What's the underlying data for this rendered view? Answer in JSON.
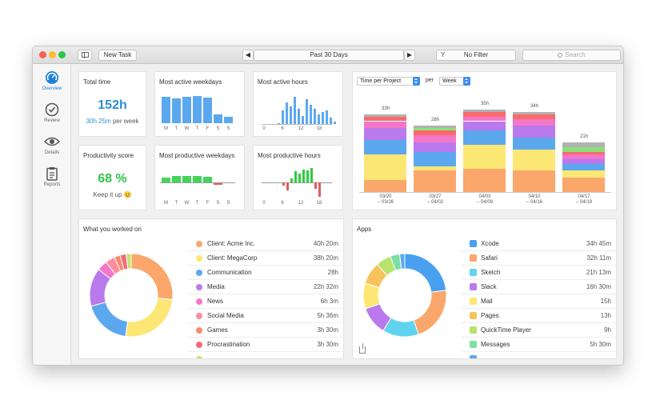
{
  "toolbar": {
    "new_task": "New Task",
    "range_label": "Past 30 Days",
    "prev": "◀",
    "next": "▶",
    "filter": "No Filter",
    "filter_icon": "Y",
    "search_placeholder": "Search"
  },
  "sidebar": {
    "items": [
      {
        "label": "Overview",
        "icon": "gauge-icon",
        "active": true
      },
      {
        "label": "Review",
        "icon": "check-icon",
        "active": false
      },
      {
        "label": "Details",
        "icon": "eye-icon",
        "active": false
      },
      {
        "label": "Reports",
        "icon": "clipboard-icon",
        "active": false
      }
    ]
  },
  "total_time": {
    "title": "Total time",
    "value": "152h",
    "per_week_value": "30h 25m",
    "per_week_suffix": "per week"
  },
  "productivity": {
    "title": "Productivity score",
    "value": "68 %",
    "message": "Keep it up 😊"
  },
  "active_weekdays": {
    "title": "Most active weekdays",
    "labels": [
      "M",
      "T",
      "W",
      "T",
      "F",
      "S",
      "S"
    ],
    "values": [
      0.88,
      0.82,
      0.88,
      0.9,
      0.84,
      0.28,
      0.22
    ]
  },
  "active_hours": {
    "title": "Most active hours",
    "ticks": [
      "0",
      "6",
      "12",
      "18"
    ],
    "values": [
      0.04,
      0.5,
      0.8,
      0.65,
      1.0,
      0.55,
      0.3,
      0.9,
      0.7,
      0.55,
      0.35,
      0.45,
      0.5,
      0.25,
      0.1
    ]
  },
  "productive_weekdays": {
    "title": "Most productive weekdays",
    "labels": [
      "M",
      "T",
      "W",
      "T",
      "F",
      "S",
      "S"
    ],
    "values": [
      0.45,
      0.55,
      0.58,
      0.6,
      0.48,
      -0.2,
      -0.05
    ]
  },
  "productive_hours": {
    "title": "Most productive hours",
    "ticks": [
      "0",
      "6",
      "12",
      "18"
    ],
    "values": [
      -0.2,
      -0.55,
      0.3,
      0.8,
      0.6,
      0.9,
      0.85,
      1.0,
      -0.45,
      -1.0
    ]
  },
  "project_chart": {
    "dimension_select": "Time per Project",
    "per_label": "per",
    "period_select": "Week",
    "chart_data": {
      "type": "bar",
      "stacked": true,
      "categories": [
        "03/20 – 03/26",
        "03/27 – 04/02",
        "04/03 – 04/09",
        "04/10 – 04/16",
        "04/17 – 04/19"
      ],
      "category_lines": [
        [
          "03/20",
          "– 03/26"
        ],
        [
          "03/27",
          "– 04/02"
        ],
        [
          "04/03",
          "– 04/09"
        ],
        [
          "04/10",
          "– 04/16"
        ],
        [
          "04/17",
          "– 04/19"
        ]
      ],
      "totals": [
        "33h",
        "28h",
        "35h",
        "34h",
        "21h"
      ],
      "total_values": [
        33,
        28,
        35,
        34,
        21
      ],
      "ylim": [
        0,
        40
      ],
      "series": [
        {
          "color": "#fba66b",
          "values": [
            5,
            9,
            10,
            9,
            6
          ]
        },
        {
          "color": "#fde774",
          "values": [
            11,
            2,
            10,
            9,
            3
          ]
        },
        {
          "color": "#5ca8ef",
          "values": [
            6,
            6,
            6,
            5,
            3
          ]
        },
        {
          "color": "#ba79ec",
          "values": [
            5,
            4,
            4,
            5,
            2
          ]
        },
        {
          "color": "#f476c8",
          "values": [
            3,
            3,
            2,
            3,
            2
          ]
        },
        {
          "color": "#f96b6b",
          "values": [
            2,
            2,
            2,
            2,
            1
          ]
        },
        {
          "color": "#8be07a",
          "values": [
            0,
            1,
            0,
            0,
            2
          ]
        },
        {
          "color": "#b2b2b2",
          "values": [
            1,
            1,
            1,
            1,
            2
          ]
        }
      ]
    }
  },
  "worked_on": {
    "title": "What you worked on",
    "items": [
      {
        "name": "Client: Acme Inc.",
        "value": "40h 20m",
        "color": "#fba66b",
        "hours": 40.3,
        "expandable": true
      },
      {
        "name": "Client: MegaCorp",
        "value": "38h 20m",
        "color": "#fde774",
        "hours": 38.3
      },
      {
        "name": "Communication",
        "value": "28h",
        "color": "#5ca8ef",
        "hours": 28
      },
      {
        "name": "Media",
        "value": "22h 32m",
        "color": "#ba79ec",
        "hours": 22.5
      },
      {
        "name": "News",
        "value": "6h 3m",
        "color": "#f476c8",
        "hours": 6
      },
      {
        "name": "Social Media",
        "value": "5h 36m",
        "color": "#fb8c9f",
        "hours": 5.6
      },
      {
        "name": "Games",
        "value": "3h 30m",
        "color": "#fb8a6b",
        "hours": 3.5
      },
      {
        "name": "Procrastination",
        "value": "3h 30m",
        "color": "#ee6b7d",
        "hours": 3.5
      },
      {
        "name": "",
        "value": "",
        "color": "#c5e36f",
        "hours": 3
      }
    ]
  },
  "apps": {
    "title": "Apps",
    "items": [
      {
        "name": "Xcode",
        "value": "34h 45m",
        "color": "#4aa0f0",
        "hours": 34.75,
        "icon": "xcode-icon"
      },
      {
        "name": "Safari",
        "value": "32h 11m",
        "color": "#fba66b",
        "hours": 32.2,
        "icon": "safari-icon"
      },
      {
        "name": "Sketch",
        "value": "21h 13m",
        "color": "#5fd3f0",
        "hours": 21.2,
        "icon": "sketch-icon"
      },
      {
        "name": "Slack",
        "value": "16h 30m",
        "color": "#ba79ec",
        "hours": 16.5,
        "icon": "slack-icon"
      },
      {
        "name": "Mail",
        "value": "15h",
        "color": "#fde774",
        "hours": 15,
        "icon": "mail-icon"
      },
      {
        "name": "Pages",
        "value": "13h",
        "color": "#f9c35c",
        "hours": 13,
        "icon": "pages-icon"
      },
      {
        "name": "QuickTime Player",
        "value": "9h",
        "color": "#b7e46b",
        "hours": 9,
        "icon": "quicktime-icon"
      },
      {
        "name": "Messages",
        "value": "5h 30m",
        "color": "#7be0a3",
        "hours": 5.5,
        "icon": "messages-icon"
      },
      {
        "name": "",
        "value": "",
        "color": "#5ca8ef",
        "hours": 3,
        "icon": "app-icon"
      }
    ]
  }
}
